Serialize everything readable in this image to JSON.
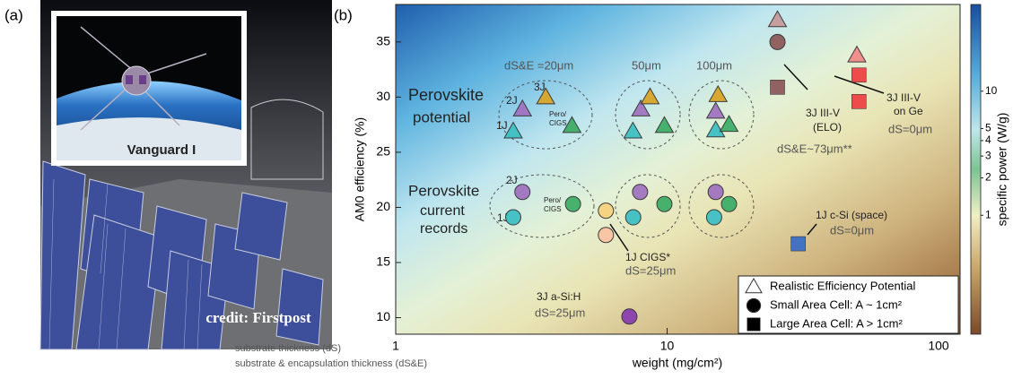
{
  "panel_a": {
    "label": "(a)",
    "inset_caption": "Vanguard I",
    "credit": "credit: Firstpost"
  },
  "chart_data": {
    "type": "scatter",
    "panel_label": "(b)",
    "x_label": "weight (mg/cm²)",
    "y_label": "AM0 efficiency (%)",
    "xlim": [
      1,
      120
    ],
    "xticks": [
      1,
      10,
      100
    ],
    "xscale": "log",
    "ylim": [
      8.5,
      38.4
    ],
    "yticks": [
      10,
      15,
      20,
      25,
      30,
      35
    ],
    "legend": "lower right",
    "series": [
      {
        "name": "Realistic Efficiency Potential",
        "marker": "triangle",
        "x": [
          2.93,
          3.57,
          2.71,
          4.46,
          8.0,
          8.65,
          7.48,
          9.77,
          15.4,
          15.1,
          15.1,
          16.9,
          25.5,
          50
        ],
        "values": [
          28.9,
          30.0,
          26.9,
          27.4,
          28.9,
          30.0,
          26.9,
          27.4,
          30.2,
          28.7,
          27.0,
          27.5,
          37.0,
          33.8
        ],
        "colors": [
          "#a174c0",
          "#d9a52a",
          "#3fc0c4",
          "#3fae68",
          "#a174c0",
          "#d9a52a",
          "#3fc0c4",
          "#3fae68",
          "#d9a52a",
          "#a174c0",
          "#3fc0c4",
          "#3fae68",
          "#c79b9b",
          "#f28a8a"
        ]
      },
      {
        "name": "Small Area Cell: A ~ 1cm²",
        "marker": "circle",
        "x": [
          2.93,
          2.71,
          4.5,
          5.95,
          5.95,
          7.95,
          7.5,
          9.77,
          15.1,
          14.9,
          16.9,
          25.5,
          7.26
        ],
        "values": [
          21.4,
          19.1,
          20.3,
          19.7,
          17.5,
          21.4,
          19.1,
          20.3,
          21.4,
          19.1,
          20.3,
          35.0,
          10.1
        ],
        "colors": [
          "#a174c0",
          "#3fc0c4",
          "#3fae68",
          "#f7d27c",
          "#f9c4a4",
          "#a174c0",
          "#3fc0c4",
          "#3fae68",
          "#a174c0",
          "#3fc0c4",
          "#3fae68",
          "#8d5b5b",
          "#8a3fb0"
        ]
      },
      {
        "name": "Large Area Cell: A > 1cm²",
        "marker": "square",
        "x": [
          25.5,
          50.9,
          50.9,
          30.4
        ],
        "values": [
          30.9,
          32.0,
          29.6,
          16.7
        ],
        "colors": [
          "#8d5b5b",
          "#ee4444",
          "#ee4444",
          "#3b6fc4"
        ]
      }
    ],
    "annotations": [
      "Perovskite",
      "potential",
      "Perovskite",
      "current",
      "records",
      "dS&E =20μm",
      "50μm",
      "100μm",
      "2J",
      "3J",
      "1J",
      "Pero/",
      "CIGS",
      "3J III-V",
      "(ELO)",
      "dS&E~73μm**",
      "3J III-V",
      "on Ge",
      "dS=0μm",
      "2J",
      "1J",
      "Pero/",
      "CIGS",
      "1J CIGS*",
      "dS=25μm",
      "1J c-Si (space)",
      "dS=0μm",
      "3J a-Si:H",
      "dS=25μm",
      "substrate thickness (dS)",
      "substrate & encapsulation thickness (dS&E)"
    ],
    "colorbar": {
      "label": "specific power (W/g)",
      "lim": [
        0.11,
        50
      ],
      "scale": "log",
      "ticks": [
        1,
        2,
        3,
        4,
        5,
        10
      ]
    }
  }
}
